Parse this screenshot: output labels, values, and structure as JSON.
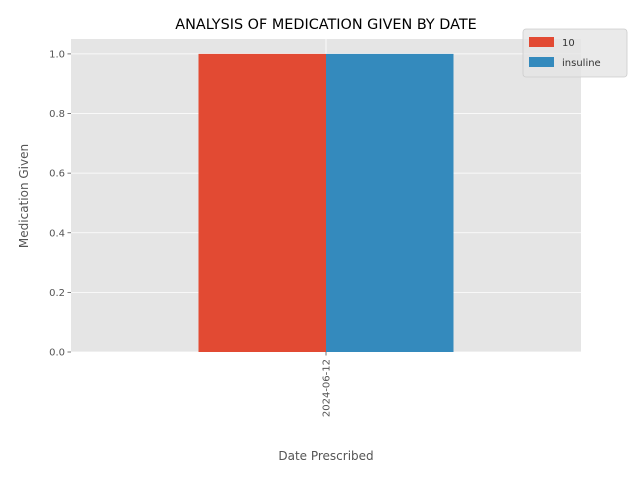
{
  "chart_data": {
    "type": "bar",
    "title": "ANALYSIS OF MEDICATION GIVEN BY DATE",
    "xlabel": "Date Prescribed",
    "ylabel": "Medication Given",
    "categories": [
      "2024-06-12"
    ],
    "series": [
      {
        "name": "10",
        "values": [
          1.0
        ],
        "color": "#E24A33"
      },
      {
        "name": "insuline",
        "values": [
          1.0
        ],
        "color": "#348ABD"
      }
    ],
    "ylim": [
      0,
      1.05
    ],
    "yticks": [
      0.0,
      0.2,
      0.4,
      0.6,
      0.8,
      1.0
    ],
    "ytick_labels": [
      "0.0",
      "0.2",
      "0.4",
      "0.6",
      "0.8",
      "1.0"
    ],
    "grid": true,
    "legend_position": "top-right",
    "x_tick_rotation": "vertical",
    "style": "ggplot"
  }
}
